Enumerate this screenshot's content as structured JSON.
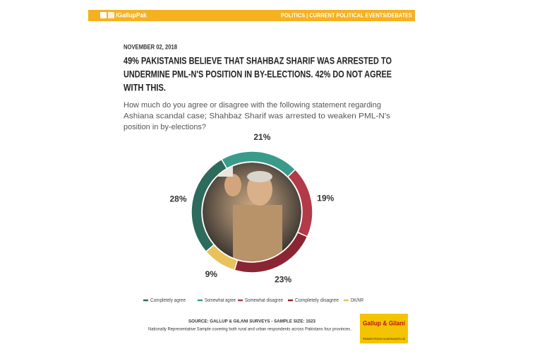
{
  "header": {
    "social": "/GallupPak",
    "section": "POLITICS | CURRENT POLITICAL EVENTS/DEBATES"
  },
  "date": "NOVEMBER 02, 2018",
  "title_lines": [
    "49% PAKISTANIS BELIEVE THAT SHAHBAZ SHARIF WAS ARRESTED TO",
    "UNDERMINE PML-N'S POSITION IN BY-ELECTIONS. 42% DO NOT AGREE",
    "WITH THIS."
  ],
  "question_lines": [
    "How much do you agree or disagree with the following statement regarding",
    "Ashiana scandal case; Shahbaz Sharif was arrested to weaken PML-N's",
    "position in by-elections?"
  ],
  "chart_data": {
    "type": "pie",
    "donut": true,
    "categories": [
      "Completely agree",
      "Somewhat agree",
      "Somewhat disagree",
      "Completely disagree",
      "DK/NR"
    ],
    "values": [
      28,
      21,
      19,
      23,
      9
    ],
    "value_labels": [
      "28%",
      "21%",
      "19%",
      "23%",
      "9%"
    ],
    "colors": [
      "#2d6b5c",
      "#3a9b8b",
      "#b23a49",
      "#8a2533",
      "#e9c25c"
    ]
  },
  "source": "SOURCE: GALLUP & GILANI SURVEYS - SAMPLE SIZE: 1523",
  "note": "Nationally Representative Sample covering both rural and urban respondents across Pakistans four provinces.",
  "logo": {
    "name": "Gallup & Gilani",
    "tagline": "Pakistan's Premier Social Research Lab"
  }
}
